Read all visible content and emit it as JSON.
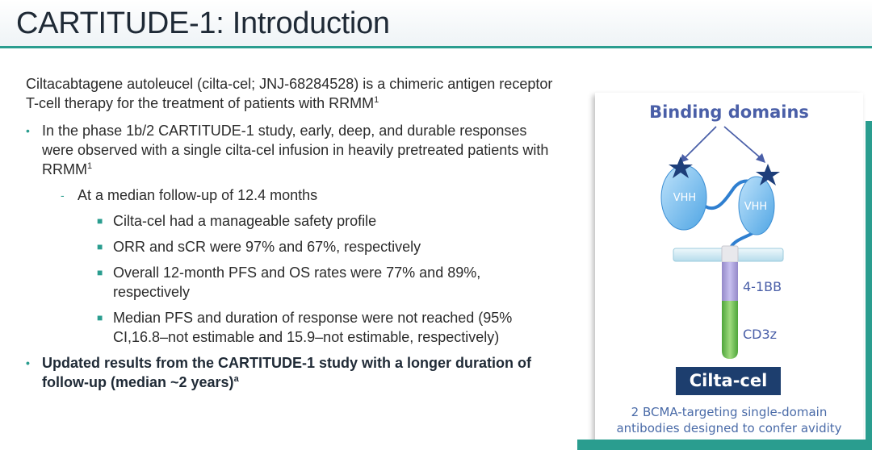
{
  "title": "CARTITUDE-1: Introduction",
  "lead": {
    "text": "Ciltacabtagene autoleucel (cilta-cel; JNJ-68284528) is a chimeric antigen receptor T-cell therapy for the treatment of patients with RRMM",
    "sup": "1"
  },
  "bullets": {
    "b1": {
      "text": "In the phase 1b/2 CARTITUDE-1 study, early, deep, and durable responses were observed with a single cilta-cel infusion in heavily pretreated patients with RRMM",
      "sup": "1"
    },
    "b1a": {
      "text": "At a median follow-up of 12.4 months"
    },
    "b1a_items": [
      "Cilta-cel had a manageable safety profile",
      "ORR and sCR were 97% and 67%, respectively",
      "Overall 12-month PFS and OS rates were 77% and 89%, respectively",
      "Median PFS and duration of response were not reached (95% CI,16.8–not estimable and 15.9–not estimable, respectively)"
    ],
    "b2": {
      "text": "Updated results from the CARTITUDE-1 study with a longer duration of follow-up (median ~2 years)",
      "sup": "a"
    }
  },
  "bullet_glyphs": {
    "l1": "•",
    "l2": "-",
    "l3": "■"
  },
  "figure": {
    "heading": "Binding domains",
    "domain_label_1": "VHH",
    "domain_label_2": "VHH",
    "costim_label": "4-1BB",
    "signal_label": "CD3z",
    "product_name": "Cilta-cel",
    "caption_line1": "2 BCMA-targeting single-domain",
    "caption_line2": "antibodies designed to confer avidity"
  },
  "colors": {
    "accent": "#2a9d8f",
    "title_text": "#1f2a36",
    "figure_heading": "#4a5fa8",
    "product_box": "#1d3e6e",
    "costim_segment": "#a49bd4",
    "signal_segment": "#6cbf4a",
    "star": "#1d3e7a",
    "vhh_fill": "#7fc2f2"
  },
  "icons": {
    "binding_star": "star-icon"
  }
}
